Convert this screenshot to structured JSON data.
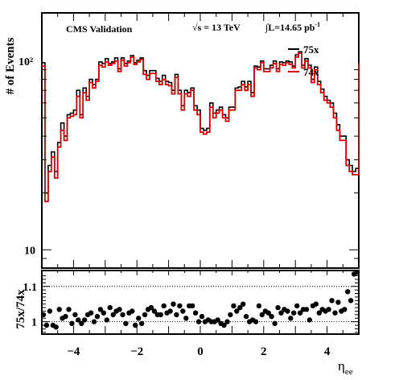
{
  "header": {
    "left": "CMS Validation",
    "energy": "√s = 13 TeV",
    "lumi": "∫L=14.65 pb",
    "lumi_sup": "-1"
  },
  "colors": {
    "s75": "#000000",
    "s74": "#e00000",
    "ratio_points": "#000000",
    "ref_line": "#000000"
  },
  "chart_data": [
    {
      "type": "line",
      "title": "",
      "xlabel": "",
      "ylabel": "# of Events",
      "yscale": "log",
      "ylim": [
        8,
        180
      ],
      "xlim": [
        -5,
        5
      ],
      "yticks": [
        "10",
        "10²"
      ],
      "grid": false,
      "legend": "top-right",
      "x_edges": [
        -5,
        -4.9,
        -4.8,
        -4.7,
        -4.6,
        -4.5,
        -4.4,
        -4.3,
        -4.2,
        -4.1,
        -4,
        -3.9,
        -3.8,
        -3.7,
        -3.6,
        -3.5,
        -3.4,
        -3.3,
        -3.2,
        -3.1,
        -3,
        -2.9,
        -2.8,
        -2.7,
        -2.6,
        -2.5,
        -2.4,
        -2.3,
        -2.2,
        -2.1,
        -2,
        -1.9,
        -1.8,
        -1.7,
        -1.6,
        -1.5,
        -1.4,
        -1.3,
        -1.2,
        -1.1,
        -1,
        -0.9,
        -0.8,
        -0.7,
        -0.6,
        -0.5,
        -0.4,
        -0.3,
        -0.2,
        -0.1,
        0,
        0.1,
        0.2,
        0.3,
        0.4,
        0.5,
        0.6,
        0.7,
        0.8,
        0.9,
        1,
        1.1,
        1.2,
        1.3,
        1.4,
        1.5,
        1.6,
        1.7,
        1.8,
        1.9,
        2,
        2.1,
        2.2,
        2.3,
        2.4,
        2.5,
        2.6,
        2.7,
        2.8,
        2.9,
        3,
        3.1,
        3.2,
        3.3,
        3.4,
        3.5,
        3.6,
        3.7,
        3.8,
        3.9,
        4,
        4.1,
        4.2,
        4.3,
        4.4,
        4.5,
        4.6,
        4.7,
        4.8,
        4.9,
        5
      ],
      "series": [
        {
          "name": "75x",
          "color": "#000000",
          "values": [
            98,
            20,
            28,
            33,
            26,
            37,
            47,
            40,
            52,
            53,
            55,
            70,
            52,
            72,
            65,
            80,
            75,
            80,
            99,
            97,
            103,
            97,
            99,
            104,
            91,
            104,
            97,
            100,
            107,
            98,
            101,
            104,
            89,
            84,
            89,
            89,
            81,
            78,
            84,
            78,
            77,
            70,
            85,
            70,
            58,
            70,
            68,
            72,
            58,
            55,
            44,
            43,
            44,
            60,
            53,
            55,
            57,
            52,
            50,
            57,
            57,
            72,
            73,
            78,
            73,
            78,
            68,
            94,
            93,
            100,
            91,
            91,
            95,
            100,
            91,
            99,
            98,
            100,
            99,
            94,
            108,
            112,
            95,
            103,
            95,
            80,
            93,
            78,
            71,
            65,
            62,
            60,
            53,
            46,
            40,
            40,
            30,
            28,
            26,
            27,
            102
          ]
        },
        {
          "name": "74x",
          "color": "#e00000",
          "values": [
            94,
            18,
            26,
            31,
            24,
            35,
            43,
            38,
            50,
            51,
            52,
            65,
            50,
            68,
            62,
            77,
            72,
            78,
            95,
            93,
            99,
            95,
            97,
            100,
            88,
            101,
            94,
            98,
            105,
            96,
            99,
            102,
            85,
            80,
            86,
            86,
            78,
            75,
            80,
            75,
            74,
            67,
            82,
            67,
            55,
            67,
            65,
            70,
            55,
            52,
            42,
            41,
            42,
            57,
            50,
            53,
            55,
            50,
            48,
            55,
            55,
            70,
            70,
            75,
            70,
            75,
            65,
            92,
            90,
            98,
            88,
            88,
            92,
            97,
            88,
            96,
            95,
            98,
            96,
            92,
            105,
            110,
            92,
            100,
            92,
            77,
            90,
            75,
            68,
            62,
            60,
            57,
            50,
            43,
            38,
            38,
            28,
            26,
            25,
            25,
            98
          ]
        }
      ]
    },
    {
      "type": "scatter",
      "title": "",
      "xlabel": "η",
      "xlabel_sub": "ee",
      "ylabel": "75x/74x",
      "ylim": [
        0.965,
        1.145
      ],
      "xlim": [
        -5,
        5
      ],
      "xticks": [
        "−4",
        "−2",
        "0",
        "2",
        "4"
      ],
      "xtick_values": [
        -4,
        -2,
        0,
        2,
        4
      ],
      "yticks": [
        "1",
        "1.1"
      ],
      "ytick_values": [
        1,
        1.1
      ],
      "grid": false,
      "reference_lines": [
        1,
        1.1
      ],
      "x": [
        -4.95,
        -4.85,
        -4.75,
        -4.65,
        -4.55,
        -4.45,
        -4.35,
        -4.25,
        -4.15,
        -4.05,
        -3.95,
        -3.85,
        -3.75,
        -3.65,
        -3.55,
        -3.45,
        -3.35,
        -3.25,
        -3.15,
        -3.05,
        -2.95,
        -2.85,
        -2.75,
        -2.65,
        -2.55,
        -2.45,
        -2.35,
        -2.25,
        -2.15,
        -2.05,
        -1.95,
        -1.85,
        -1.75,
        -1.65,
        -1.55,
        -1.45,
        -1.35,
        -1.25,
        -1.15,
        -1.05,
        -0.95,
        -0.85,
        -0.75,
        -0.65,
        -0.55,
        -0.45,
        -0.35,
        -0.25,
        -0.15,
        -0.05,
        0.05,
        0.15,
        0.25,
        0.35,
        0.45,
        0.55,
        0.65,
        0.75,
        0.85,
        0.95,
        1.05,
        1.15,
        1.25,
        1.35,
        1.45,
        1.55,
        1.65,
        1.75,
        1.85,
        1.95,
        2.05,
        2.15,
        2.25,
        2.35,
        2.45,
        2.55,
        2.65,
        2.75,
        2.85,
        2.95,
        3.05,
        3.15,
        3.25,
        3.35,
        3.45,
        3.55,
        3.65,
        3.75,
        3.85,
        3.95,
        4.05,
        4.15,
        4.25,
        4.35,
        4.45,
        4.55,
        4.65,
        4.75,
        4.85,
        4.95
      ],
      "y": [
        1.02,
        0.99,
        1.03,
        0.99,
        0.985,
        1.035,
        1.01,
        1.015,
        1.035,
        0.995,
        1.02,
        1.005,
        0.995,
        1.005,
        1.02,
        1.025,
        1.0,
        1.015,
        1.035,
        1.025,
        1.005,
        1.04,
        1.02,
        1.03,
        1.035,
        1.02,
        0.995,
        1.025,
        1.03,
        0.99,
        1.01,
        0.995,
        1.02,
        1.035,
        1.04,
        1.03,
        1.02,
        1.02,
        1.045,
        1.025,
        1.03,
        1.05,
        1.02,
        1.045,
        1.03,
        1.01,
        1.045,
        1.045,
        1.025,
        1.0,
        1.015,
        1.0,
        1.005,
        1.0,
        1.0,
        1.005,
        0.995,
        0.99,
        1.0,
        1.02,
        1.045,
        1.03,
        1.04,
        1.05,
        1.015,
        1.0,
        1.005,
        1.0,
        1.045,
        1.02,
        1.03,
        1.025,
        1.015,
        0.995,
        1.04,
        1.025,
        1.035,
        1.03,
        1.01,
        1.025,
        1.045,
        1.025,
        1.035,
        1.035,
        1.005,
        1.045,
        1.05,
        1.025,
        1.035,
        1.03,
        1.035,
        1.06,
        1.025,
        1.055,
        1.03,
        1.035,
        1.085,
        1.06,
        1.135,
        1.14
      ]
    }
  ]
}
